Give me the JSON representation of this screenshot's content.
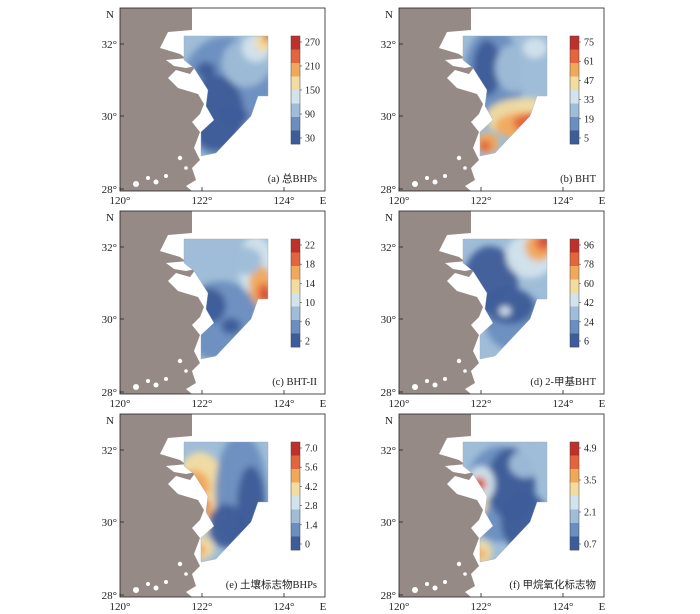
{
  "figure": {
    "panels": [
      {
        "id": "a",
        "caption": "(a) 总BHPs",
        "colorbar_ticks": [
          "270",
          "210",
          "150",
          "90",
          "30"
        ],
        "pattern": "total"
      },
      {
        "id": "b",
        "caption": "(b) BHT",
        "colorbar_ticks": [
          "75",
          "61",
          "47",
          "33",
          "19",
          "5"
        ],
        "pattern": "bht"
      },
      {
        "id": "c",
        "caption": "(c) BHT-II",
        "colorbar_ticks": [
          "22",
          "18",
          "14",
          "10",
          "6",
          "2"
        ],
        "pattern": "bht2"
      },
      {
        "id": "d",
        "caption": "(d) 2-甲基BHT",
        "colorbar_ticks": [
          "96",
          "78",
          "60",
          "42",
          "24",
          "6"
        ],
        "pattern": "methyl"
      },
      {
        "id": "e",
        "caption": "(e) 土壤标志物BHPs",
        "colorbar_ticks": [
          "7.0",
          "5.6",
          "4.2",
          "2.8",
          "1.4",
          "0"
        ],
        "pattern": "soil"
      },
      {
        "id": "f",
        "caption": "(f) 甲烷氧化标志物",
        "colorbar_ticks": [
          "4.9",
          "3.5",
          "2.1",
          "0.7"
        ],
        "pattern": "methane"
      }
    ],
    "axes": {
      "x_ticks": [
        "120°",
        "122°",
        "124°"
      ],
      "x_label": "E",
      "y_ticks": [
        "32°",
        "30°",
        "28°"
      ],
      "y_label": "N"
    },
    "colors": {
      "land": "#968a87",
      "colormap": [
        "#3e5c99",
        "#6b8ec0",
        "#9fbdd8",
        "#d3e3ec",
        "#f3dca0",
        "#f2a85b",
        "#e4643d",
        "#c0302b"
      ]
    }
  }
}
